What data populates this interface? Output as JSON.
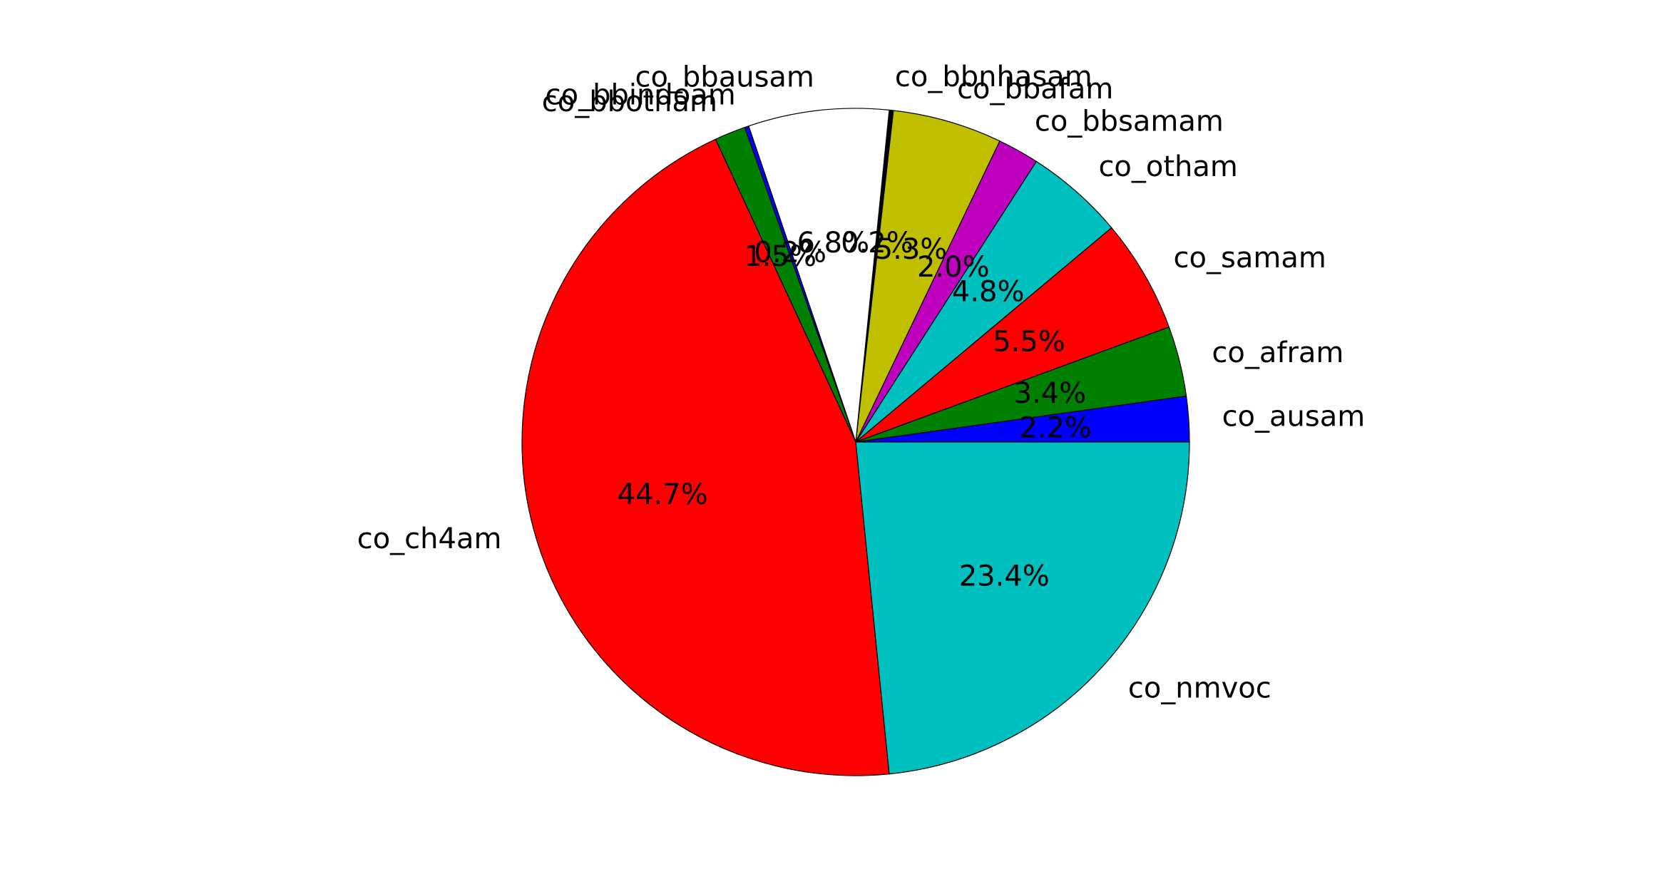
{
  "chart_data": {
    "type": "pie",
    "slices": [
      {
        "label": "co_ausam",
        "value": 2.2,
        "pct_text": "2.2%",
        "color": "#0000ff"
      },
      {
        "label": "co_afram",
        "value": 3.4,
        "pct_text": "3.4%",
        "color": "#008000"
      },
      {
        "label": "co_samam",
        "value": 5.5,
        "pct_text": "5.5%",
        "color": "#ff0000"
      },
      {
        "label": "co_otham",
        "value": 4.8,
        "pct_text": "4.8%",
        "color": "#00bfbf"
      },
      {
        "label": "co_bbsamam",
        "value": 2.0,
        "pct_text": "2.0%",
        "color": "#bf00bf"
      },
      {
        "label": "co_bbafam",
        "value": 5.3,
        "pct_text": "5.3%",
        "color": "#bfbf00"
      },
      {
        "label": "co_bbnhasam",
        "value": 0.2,
        "pct_text": "0.2%",
        "color": "#000000"
      },
      {
        "label": "co_bbausam",
        "value": 6.8,
        "pct_text": "6.8%",
        "color": "#ffffff"
      },
      {
        "label": "co_bbindoam",
        "value": 0.2,
        "pct_text": "0.2%",
        "color": "#0000ff"
      },
      {
        "label": "co_bbotham",
        "value": 1.5,
        "pct_text": "1.5%",
        "color": "#008000"
      },
      {
        "label": "co_ch4am",
        "value": 44.7,
        "pct_text": "44.7%",
        "color": "#ff0000"
      },
      {
        "label": "co_nmvoc",
        "value": 23.4,
        "pct_text": "23.4%",
        "color": "#00bfbf"
      }
    ],
    "start_angle_deg": 0,
    "direction": "counterclockwise",
    "edge_color": "#000000"
  }
}
